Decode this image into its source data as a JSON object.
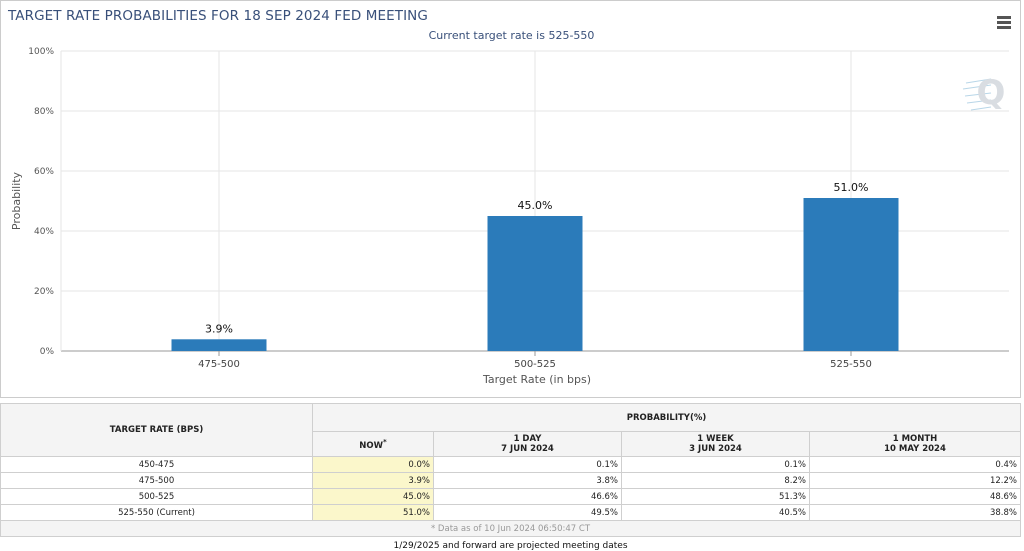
{
  "chart_title": "TARGET RATE PROBABILITIES FOR 18 SEP 2024 FED MEETING",
  "chart_subtitle": "Current target rate is 525-550",
  "menu_icon": "hamburger-menu-icon",
  "watermark_letter": "Q",
  "colors": {
    "bar": "#2b7bba",
    "title": "#39507a",
    "now_highlight": "#fbf7cb"
  },
  "chart_data": {
    "type": "bar",
    "title": "TARGET RATE PROBABILITIES FOR 18 SEP 2024 FED MEETING",
    "subtitle": "Current target rate is 525-550",
    "categories": [
      "475-500",
      "500-525",
      "525-550"
    ],
    "values": [
      3.9,
      45.0,
      51.0
    ],
    "data_labels": [
      "3.9%",
      "45.0%",
      "51.0%"
    ],
    "xlabel": "Target Rate (in bps)",
    "ylabel": "Probability",
    "ylim": [
      0,
      100
    ],
    "yticks": [
      0,
      20,
      40,
      60,
      80,
      100
    ],
    "ytick_labels": [
      "0%",
      "20%",
      "40%",
      "60%",
      "80%",
      "100%"
    ],
    "grid": true,
    "legend": "none"
  },
  "table": {
    "target_header": "TARGET RATE (BPS)",
    "prob_header": "PROBABILITY(%)",
    "now_label": "NOW",
    "now_marker": "*",
    "columns": [
      {
        "line1": "1 DAY",
        "line2": "7 JUN 2024"
      },
      {
        "line1": "1 WEEK",
        "line2": "3 JUN 2024"
      },
      {
        "line1": "1 MONTH",
        "line2": "10 MAY 2024"
      }
    ],
    "rows": [
      {
        "rate": "450-475",
        "now": "0.0%",
        "day": "0.1%",
        "week": "0.1%",
        "month": "0.4%"
      },
      {
        "rate": "475-500",
        "now": "3.9%",
        "day": "3.8%",
        "week": "8.2%",
        "month": "12.2%"
      },
      {
        "rate": "500-525",
        "now": "45.0%",
        "day": "46.6%",
        "week": "51.3%",
        "month": "48.6%"
      },
      {
        "rate": "525-550 (Current)",
        "now": "51.0%",
        "day": "49.5%",
        "week": "40.5%",
        "month": "38.8%"
      }
    ],
    "note": "* Data as of 10 Jun 2024 06:50:47 CT"
  },
  "footer_note": "1/29/2025 and forward are projected meeting dates"
}
